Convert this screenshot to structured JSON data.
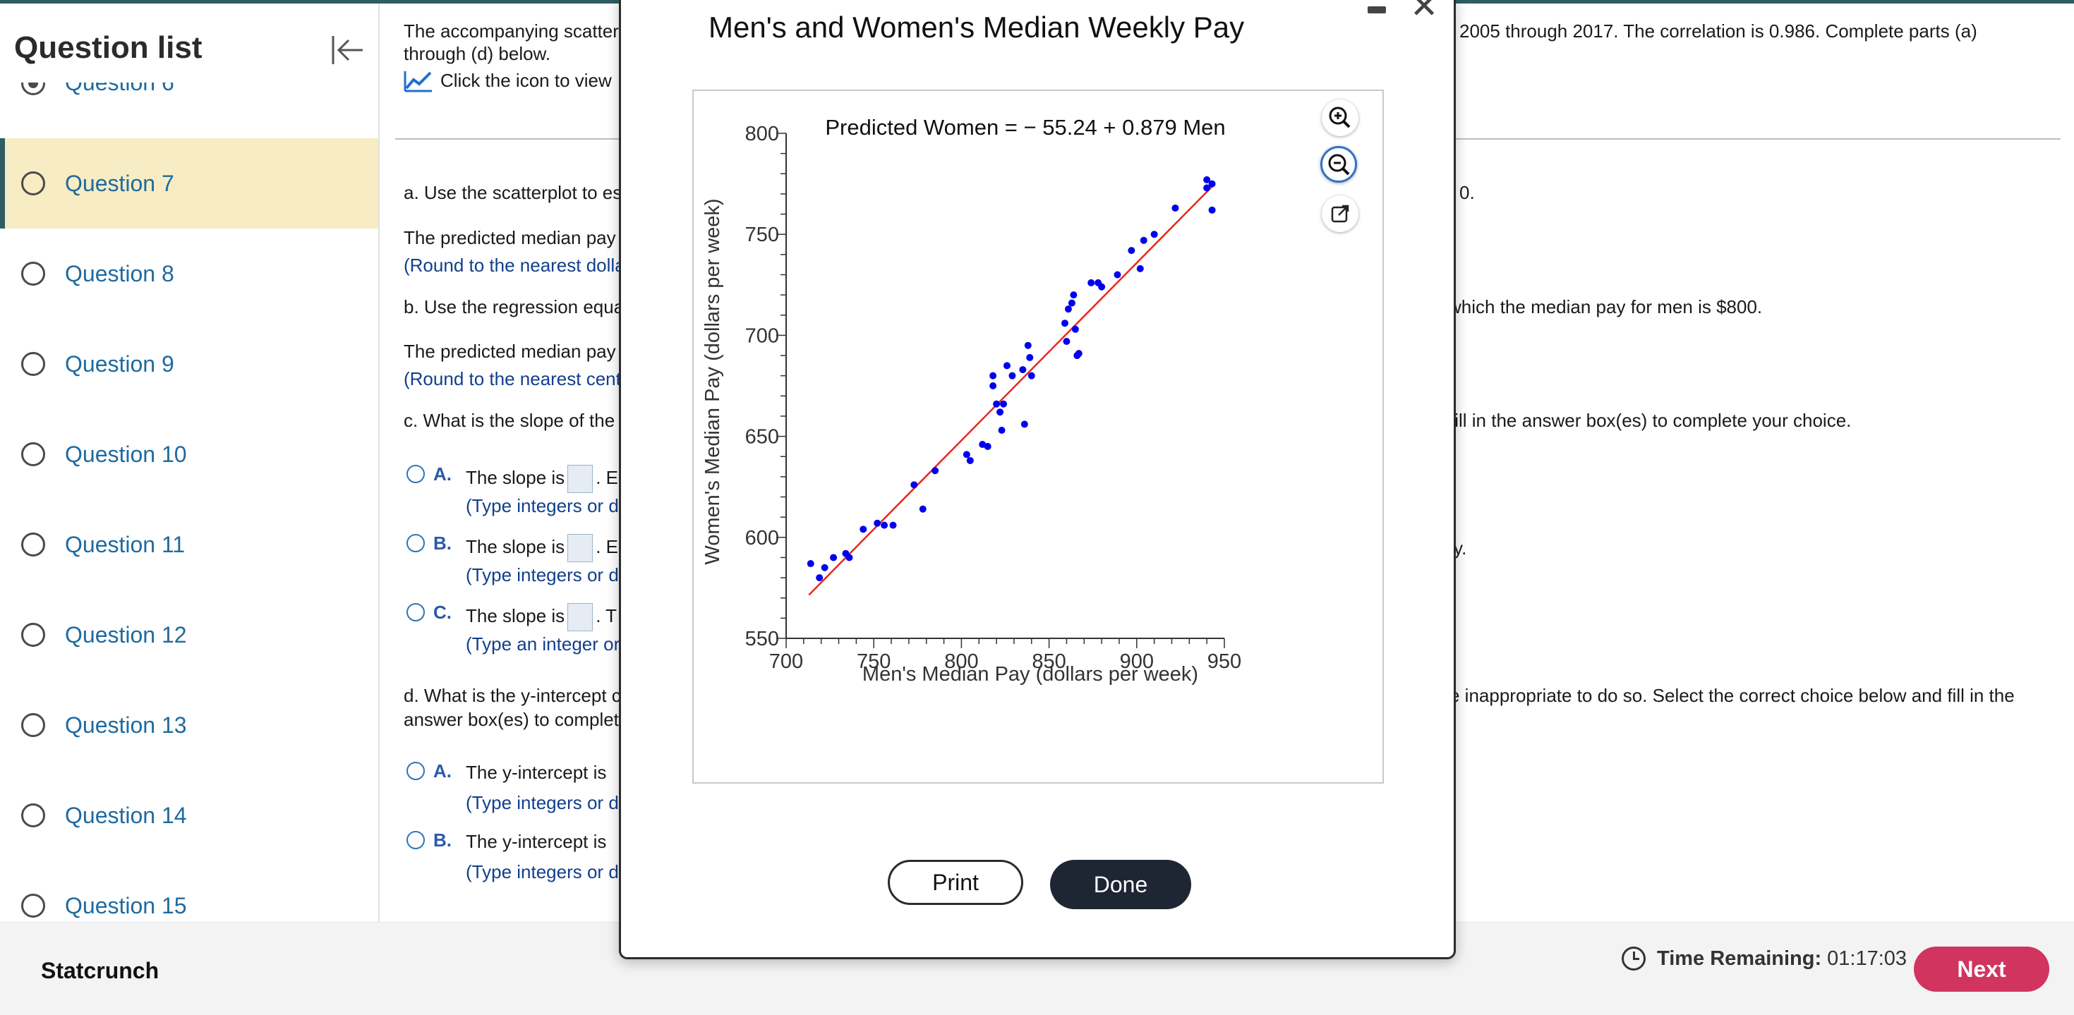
{
  "sidebar": {
    "title": "Question list",
    "clipped_item": "Question 6",
    "items": [
      {
        "label": "Question 7"
      },
      {
        "label": "Question 8"
      },
      {
        "label": "Question 9"
      },
      {
        "label": "Question 10"
      },
      {
        "label": "Question 11"
      },
      {
        "label": "Question 12"
      },
      {
        "label": "Question 13"
      },
      {
        "label": "Question 14"
      },
      {
        "label": "Question 15"
      }
    ]
  },
  "question": {
    "intro_left": "The accompanying scatter",
    "intro_right": "2005 through 2017. The correlation is 0.986. Complete parts (a)",
    "intro_line2": "through (d) below.",
    "view_link": "Click the icon to view",
    "part_a": "a. Use the scatterplot to es",
    "part_a_right": "0.",
    "part_a_answer": "The predicted median pay",
    "part_a_round": "(Round to the nearest dolla",
    "part_b": "b. Use the regression equa",
    "part_b_right": "which the median pay for men is $800.",
    "part_b_answer": "The predicted median pay",
    "part_b_round": "(Round to the nearest cent",
    "part_c": "c. What is the slope of the",
    "part_c_right": "fill in the answer box(es) to complete your choice.",
    "c_options": [
      {
        "letter": "A.",
        "pre": "The slope is",
        "post": ". E",
        "hint": "(Type integers or d"
      },
      {
        "letter": "B.",
        "pre": "The slope is",
        "post": ". E",
        "hint": "(Type integers or d"
      },
      {
        "letter": "C.",
        "pre": "The slope is",
        "post": ". T",
        "hint": "(Type an integer or"
      }
    ],
    "c_b_right": "y.",
    "part_d": "d. What is the y-intercept c",
    "part_d_right": "e inappropriate to do so. Select the correct choice below and fill in the",
    "part_d_line2": "answer box(es) to complet",
    "d_options": [
      {
        "letter": "A.",
        "pre": "The y-intercept is",
        "hint": "(Type integers or d"
      },
      {
        "letter": "B.",
        "pre": "The y-intercept is",
        "hint": "(Type integers or d"
      }
    ]
  },
  "footer": {
    "brand": "Statcrunch",
    "time_label": "Time Remaining:",
    "time_value": "01:17:03",
    "next_label": "Next"
  },
  "modal": {
    "title": "Men's and Women's Median Weekly Pay",
    "print_label": "Print",
    "done_label": "Done",
    "icons": [
      "zoom-in-icon",
      "zoom-out-icon",
      "open-external-icon"
    ]
  },
  "chart_data": {
    "type": "scatter",
    "title": "Predicted Women  =  − 55.24 + 0.879 Men",
    "xlabel": "Men's Median Pay (dollars per week)",
    "ylabel": "Women's Median Pay (dollars per week)",
    "xlim": [
      700,
      950
    ],
    "ylim": [
      550,
      800
    ],
    "xticks": [
      700,
      750,
      800,
      850,
      900,
      950
    ],
    "yticks": [
      550,
      600,
      650,
      700,
      750,
      800
    ],
    "grid": false,
    "point_color": "#0000ee",
    "line_color": "#e8281e",
    "regression": {
      "intercept": -55.24,
      "slope": 0.879,
      "x_range": [
        713,
        943
      ]
    },
    "points": [
      [
        714,
        587
      ],
      [
        719,
        580
      ],
      [
        722,
        585
      ],
      [
        727,
        590
      ],
      [
        734,
        592
      ],
      [
        736,
        590
      ],
      [
        744,
        604
      ],
      [
        752,
        607
      ],
      [
        756,
        606
      ],
      [
        761,
        606
      ],
      [
        773,
        626
      ],
      [
        778,
        614
      ],
      [
        785,
        633
      ],
      [
        803,
        641
      ],
      [
        805,
        638
      ],
      [
        812,
        646
      ],
      [
        815,
        645
      ],
      [
        818,
        675
      ],
      [
        818,
        680
      ],
      [
        820,
        666
      ],
      [
        822,
        662
      ],
      [
        823,
        653
      ],
      [
        824,
        666
      ],
      [
        826,
        685
      ],
      [
        829,
        680
      ],
      [
        835,
        683
      ],
      [
        836,
        656
      ],
      [
        838,
        695
      ],
      [
        839,
        689
      ],
      [
        840,
        680
      ],
      [
        859,
        706
      ],
      [
        860,
        697
      ],
      [
        861,
        713
      ],
      [
        863,
        716
      ],
      [
        864,
        720
      ],
      [
        865,
        703
      ],
      [
        866,
        690
      ],
      [
        867,
        691
      ],
      [
        874,
        726
      ],
      [
        878,
        726
      ],
      [
        880,
        724
      ],
      [
        889,
        730
      ],
      [
        897,
        742
      ],
      [
        902,
        733
      ],
      [
        904,
        747
      ],
      [
        910,
        750
      ],
      [
        922,
        763
      ],
      [
        940,
        777
      ],
      [
        940,
        773
      ],
      [
        943,
        775
      ],
      [
        943,
        762
      ]
    ]
  }
}
